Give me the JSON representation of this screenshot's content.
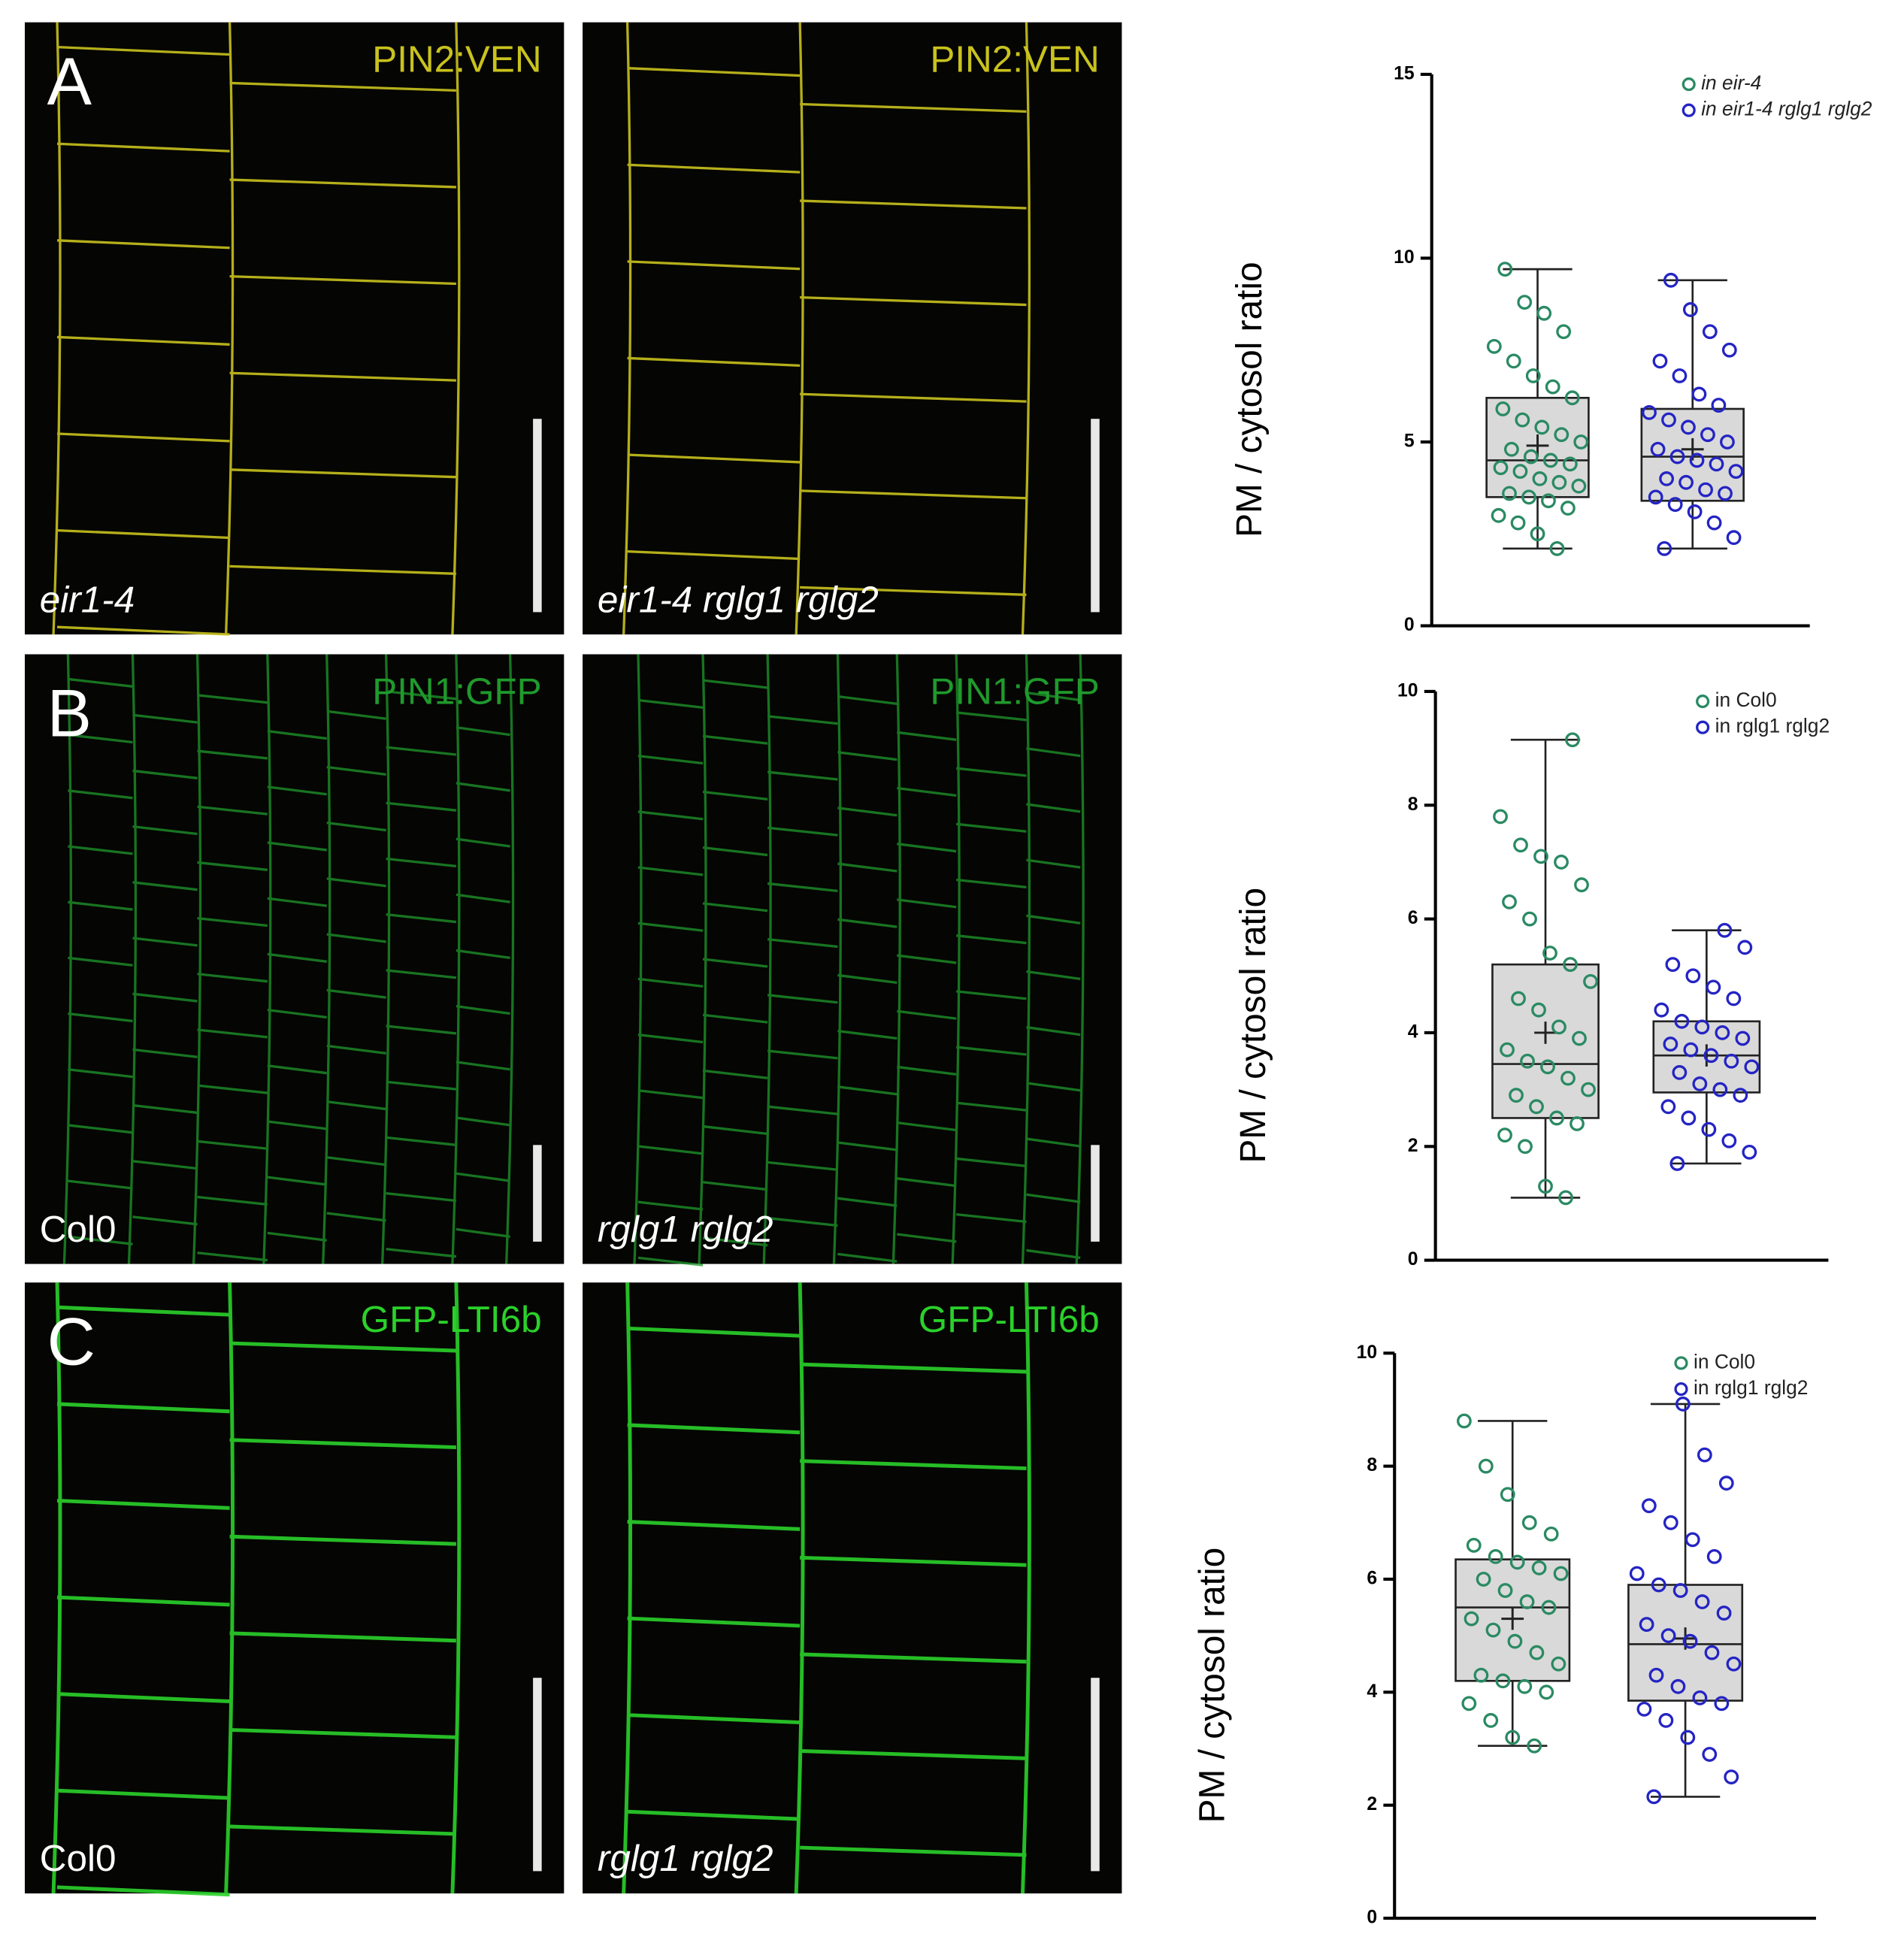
{
  "panels": [
    {
      "letter": "A",
      "images": [
        {
          "marker": "PIN2:VEN",
          "genotype": "eir1-4"
        },
        {
          "marker": "PIN2:VEN",
          "genotype": "eir1-4 rglg1 rglg2"
        }
      ]
    },
    {
      "letter": "B",
      "images": [
        {
          "marker": "PIN1:GFP",
          "genotype": "Col0"
        },
        {
          "marker": "PIN1:GFP",
          "genotype": "rglg1 rglg2"
        }
      ]
    },
    {
      "letter": "C",
      "images": [
        {
          "marker": "GFP-LTI6b",
          "genotype": "Col0"
        },
        {
          "marker": "GFP-LTI6b",
          "genotype": "rglg1 rglg2"
        }
      ]
    }
  ],
  "chart_data": [
    {
      "type": "box",
      "ylabel": "PM / cytosol ratio",
      "ylim": [
        0,
        15
      ],
      "yticks": [
        0,
        5,
        10,
        15
      ],
      "series": [
        {
          "name": "in eir-4",
          "color": "#2a8a63",
          "min": 2.1,
          "q1": 3.5,
          "median": 4.5,
          "q3": 6.2,
          "max": 9.7,
          "mean": 4.9,
          "points": [
            2.1,
            2.5,
            2.8,
            3.0,
            3.2,
            3.4,
            3.5,
            3.6,
            3.8,
            3.9,
            4.0,
            4.2,
            4.3,
            4.4,
            4.5,
            4.6,
            4.8,
            5.0,
            5.2,
            5.4,
            5.6,
            5.9,
            6.2,
            6.5,
            6.8,
            7.2,
            7.6,
            8.0,
            8.5,
            8.8,
            9.7
          ]
        },
        {
          "name": "in eir1-4 rglg1 rglg2",
          "color": "#2424c4",
          "min": 2.1,
          "q1": 3.4,
          "median": 4.6,
          "q3": 5.9,
          "max": 9.4,
          "mean": 4.8,
          "points": [
            2.1,
            2.4,
            2.8,
            3.1,
            3.3,
            3.5,
            3.6,
            3.7,
            3.9,
            4.0,
            4.2,
            4.4,
            4.5,
            4.6,
            4.8,
            5.0,
            5.2,
            5.4,
            5.6,
            5.8,
            6.0,
            6.3,
            6.8,
            7.2,
            7.5,
            8.0,
            8.6,
            9.4
          ]
        }
      ]
    },
    {
      "type": "box",
      "ylabel": "PM / cytosol ratio",
      "ylim": [
        0,
        10
      ],
      "yticks": [
        0,
        2,
        4,
        6,
        8,
        10
      ],
      "series": [
        {
          "name": "in Col0",
          "color": "#2a8a63",
          "min": 1.1,
          "q1": 2.5,
          "median": 3.45,
          "q3": 5.2,
          "max": 9.15,
          "mean": 4.0,
          "points": [
            1.1,
            1.3,
            2.0,
            2.2,
            2.4,
            2.5,
            2.7,
            2.9,
            3.0,
            3.2,
            3.4,
            3.5,
            3.7,
            3.9,
            4.1,
            4.4,
            4.6,
            4.9,
            5.2,
            5.4,
            6.0,
            6.3,
            6.6,
            7.0,
            7.1,
            7.3,
            7.8,
            9.15
          ]
        },
        {
          "name": "in rglg1 rglg2",
          "color": "#2424c4",
          "min": 1.7,
          "q1": 2.95,
          "median": 3.6,
          "q3": 4.2,
          "max": 5.8,
          "mean": 3.6,
          "points": [
            1.7,
            1.9,
            2.1,
            2.3,
            2.5,
            2.7,
            2.9,
            3.0,
            3.1,
            3.3,
            3.4,
            3.5,
            3.6,
            3.7,
            3.8,
            3.9,
            4.0,
            4.1,
            4.2,
            4.4,
            4.6,
            4.8,
            5.0,
            5.2,
            5.5,
            5.8
          ]
        }
      ]
    },
    {
      "type": "box",
      "ylabel": "PM / cytosol ratio",
      "ylim": [
        0,
        10
      ],
      "yticks": [
        0,
        2,
        4,
        6,
        8,
        10
      ],
      "series": [
        {
          "name": "in Col0",
          "color": "#2a8a63",
          "min": 3.05,
          "q1": 4.2,
          "median": 5.5,
          "q3": 6.35,
          "max": 8.8,
          "mean": 5.3,
          "points": [
            3.05,
            3.2,
            3.5,
            3.8,
            4.0,
            4.1,
            4.2,
            4.3,
            4.5,
            4.7,
            4.9,
            5.1,
            5.3,
            5.5,
            5.6,
            5.8,
            6.0,
            6.1,
            6.2,
            6.3,
            6.4,
            6.6,
            6.8,
            7.0,
            7.5,
            8.0,
            8.8
          ]
        },
        {
          "name": "in rglg1 rglg2",
          "color": "#2424c4",
          "min": 2.15,
          "q1": 3.85,
          "median": 4.85,
          "q3": 5.9,
          "max": 9.1,
          "mean": 4.95,
          "points": [
            2.15,
            2.5,
            2.9,
            3.2,
            3.5,
            3.7,
            3.8,
            3.9,
            4.1,
            4.3,
            4.5,
            4.7,
            4.9,
            5.0,
            5.2,
            5.4,
            5.6,
            5.8,
            5.9,
            6.1,
            6.4,
            6.7,
            7.0,
            7.3,
            7.7,
            8.2,
            9.1
          ]
        }
      ]
    }
  ]
}
